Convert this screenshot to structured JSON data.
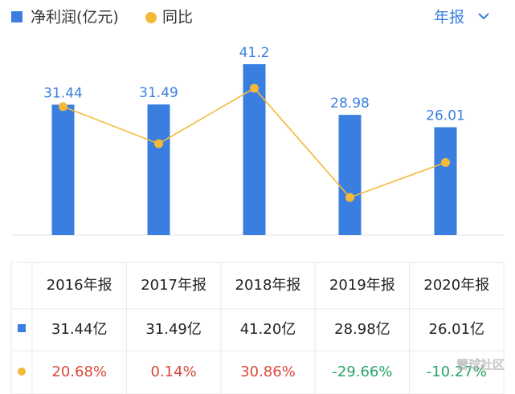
{
  "chart_data": {
    "type": "bar_line",
    "legend": [
      "净利润(亿元)",
      "同比"
    ],
    "period_selector": "年报",
    "categories": [
      "2016年报",
      "2017年报",
      "2018年报",
      "2019年报",
      "2020年报"
    ],
    "series": [
      {
        "name": "净利润(亿元)",
        "color": "#3a7fe0",
        "values": [
          31.44,
          31.49,
          41.2,
          28.98,
          26.01
        ],
        "value_labels": [
          "31.44亿",
          "31.49亿",
          "41.20亿",
          "28.98亿",
          "26.01亿"
        ]
      },
      {
        "name": "同比",
        "color": "#f5b93a",
        "axis": "y2",
        "values": [
          20.68,
          0.14,
          30.86,
          -29.66,
          -10.27
        ],
        "value_labels": [
          "20.68%",
          "0.14%",
          "30.86%",
          "-29.66%",
          "-10.27%"
        ]
      }
    ],
    "ylim": [
      0,
      47
    ],
    "y2lim": [
      -50.5,
      57.5
    ],
    "up_color": "#d9483b",
    "down_color": "#27a468",
    "label_color": "#3a7fe0",
    "watermark": "雪球社区"
  }
}
